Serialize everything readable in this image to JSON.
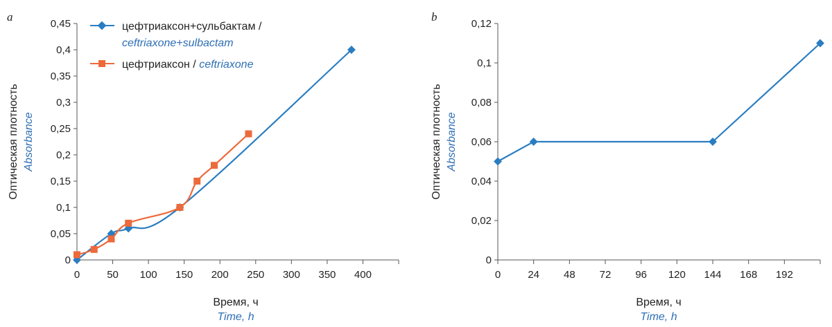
{
  "colors": {
    "blue": "#2a7dc1",
    "orange": "#ec6a3b",
    "axis": "#555555"
  },
  "chart_data": [
    {
      "type": "line",
      "panel_label": "a",
      "xlabel": "Время, ч",
      "xlabel_en": "Time, h",
      "ylabel": "Оптическая плотность",
      "ylabel_en": "Absorbance",
      "xlim": [
        0,
        450
      ],
      "ylim": [
        0,
        0.45
      ],
      "x_ticks": [
        0,
        50,
        100,
        150,
        200,
        250,
        300,
        350,
        400
      ],
      "x_tick_labels": [
        "0",
        "50",
        "100",
        "150",
        "200",
        "250",
        "300",
        "350",
        "400"
      ],
      "y_ticks": [
        0,
        0.05,
        0.1,
        0.15,
        0.2,
        0.25,
        0.3,
        0.35,
        0.4,
        0.45
      ],
      "y_tick_labels": [
        "0",
        "0,05",
        "0,1",
        "0,15",
        "0,2",
        "0,25",
        "0,3",
        "0,35",
        "0,4",
        "0,45"
      ],
      "grid": false,
      "legend_position": "top-left",
      "series": [
        {
          "name": "цефтриаксон+сульбактам /",
          "name_en": "ceftriaxone+sulbactam",
          "color": "#2a7dc1",
          "marker": "diamond",
          "smooth": true,
          "x": [
            0,
            48,
            72,
            144,
            384
          ],
          "y": [
            0,
            0.05,
            0.06,
            0.1,
            0.4
          ]
        },
        {
          "name": "цефтриаксон /",
          "name_en": "ceftriaxone",
          "color": "#ec6a3b",
          "marker": "square",
          "smooth": true,
          "x": [
            0,
            24,
            48,
            72,
            144,
            168,
            192,
            240
          ],
          "y": [
            0.01,
            0.02,
            0.04,
            0.07,
            0.1,
            0.15,
            0.18,
            0.24
          ]
        }
      ]
    },
    {
      "type": "line",
      "panel_label": "b",
      "xlabel": "Время, ч",
      "xlabel_en": "Time, h",
      "ylabel": "Оптическая плотность",
      "ylabel_en": "Absorbance",
      "xlim": [
        0,
        216
      ],
      "ylim": [
        0,
        0.12
      ],
      "x_ticks": [
        0,
        24,
        48,
        72,
        96,
        120,
        144,
        168,
        192
      ],
      "x_tick_labels": [
        "0",
        "24",
        "48",
        "72",
        "96",
        "120",
        "144",
        "168",
        "192"
      ],
      "y_ticks": [
        0,
        0.02,
        0.04,
        0.06,
        0.08,
        0.1,
        0.12
      ],
      "y_tick_labels": [
        "0",
        "0,02",
        "0,04",
        "0,06",
        "0,08",
        "0,1",
        "0,12"
      ],
      "grid": false,
      "series": [
        {
          "color": "#2a7dc1",
          "marker": "diamond",
          "smooth": false,
          "x": [
            0,
            24,
            144,
            216
          ],
          "y": [
            0.05,
            0.06,
            0.06,
            0.11
          ]
        }
      ]
    }
  ]
}
